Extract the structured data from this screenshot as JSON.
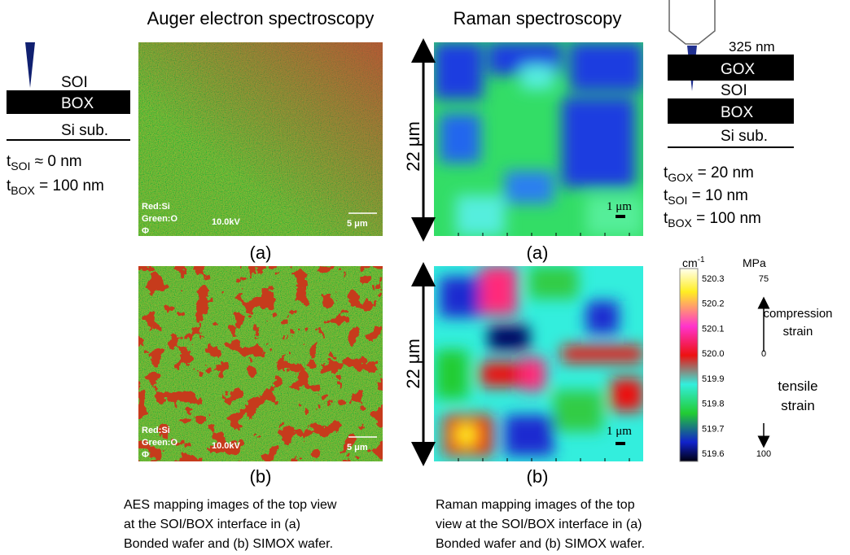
{
  "headings": {
    "aes": "Auger electron spectroscopy",
    "raman": "Raman spectroscopy"
  },
  "left_stack": {
    "layers": [
      "SOI",
      "BOX",
      "Si sub."
    ],
    "params": [
      {
        "symbol": "t",
        "subscript": "SOI",
        "value": " ≈ 0 nm"
      },
      {
        "symbol": "t",
        "subscript": "BOX",
        "value": " = 100 nm"
      }
    ]
  },
  "right_stack": {
    "wavelength": "325 nm",
    "layers": [
      "GOX",
      "SOI",
      "BOX",
      "Si sub."
    ],
    "params": [
      {
        "symbol": "t",
        "subscript": "GOX",
        "value": " = 20 nm"
      },
      {
        "symbol": "t",
        "subscript": "SOI",
        "value": " = 10 nm"
      },
      {
        "symbol": "t",
        "subscript": "BOX",
        "value": " = 100 nm"
      }
    ]
  },
  "aes_panels": [
    {
      "label": "(a)",
      "overlay": [
        "Red:Si",
        "Green:O",
        "Φ"
      ],
      "voltage": "10.0kV",
      "scale": "5 μm"
    },
    {
      "label": "(b)",
      "overlay": [
        "Red:Si",
        "Green:O",
        "Φ"
      ],
      "voltage": "10.0kV",
      "scale": "5 μm"
    }
  ],
  "raman_panels": [
    {
      "label": "(a)",
      "size": "22 μm",
      "scale": "1 μm"
    },
    {
      "label": "(b)",
      "size": "22 μm",
      "scale": "1 μm"
    }
  ],
  "colorbar": {
    "unit": "cm",
    "unit_sup": "-1",
    "unit2": "MPa",
    "ticks": [
      "520.3",
      "520.2",
      "520.1",
      "520.0",
      "519.9",
      "519.8",
      "519.7",
      "519.6"
    ],
    "stress_ticks": [
      "75",
      "0",
      "100"
    ],
    "compression": [
      "compression",
      "strain"
    ],
    "tensile": [
      "tensile",
      "strain"
    ]
  },
  "captions": {
    "aes": [
      "AES mapping images of the top view",
      "at the SOI/BOX interface in (a)",
      "Bonded wafer and (b) SIMOX wafer."
    ],
    "raman": [
      "Raman mapping images of the top",
      "view at the SOI/BOX interface in (a)",
      "Bonded wafer and (b) SIMOX wafer."
    ]
  }
}
